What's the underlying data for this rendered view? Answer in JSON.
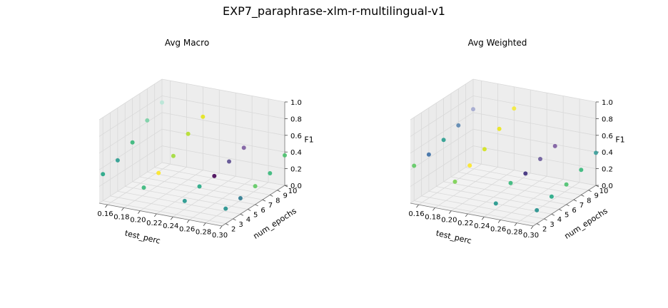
{
  "suptitle": "EXP7_paraphrase-xlm-r-multilingual-v1",
  "colors": {
    "pane": "#f2f2f2",
    "grid": "#d9d9d9",
    "edge": "#777777"
  },
  "chart_data": [
    {
      "type": "scatter",
      "projection": "3d",
      "title": "Avg Macro",
      "xlabel": "test_perc",
      "ylabel": "num_epochs",
      "zlabel": "F1",
      "xlim": [
        0.15,
        0.3
      ],
      "ylim": [
        1.5,
        10
      ],
      "zlim": [
        0,
        1
      ],
      "xticks": [
        "0.16",
        "0.18",
        "0.20",
        "0.22",
        "0.24",
        "0.26",
        "0.28",
        "0.30"
      ],
      "yticks": [
        "2",
        "3",
        "4",
        "5",
        "6",
        "7",
        "8",
        "9",
        "10"
      ],
      "zticks": [
        "0.0",
        "0.2",
        "0.4",
        "0.6",
        "0.8",
        "1.0"
      ],
      "grid": true,
      "points": [
        {
          "x": 0.15,
          "y": 2,
          "z": 0.32,
          "color": "#21a685"
        },
        {
          "x": 0.15,
          "y": 4,
          "z": 0.37,
          "color": "#2a9d8f"
        },
        {
          "x": 0.15,
          "y": 6,
          "z": 0.47,
          "color": "#35b779"
        },
        {
          "x": 0.15,
          "y": 8,
          "z": 0.62,
          "color": "#7ad0a5"
        },
        {
          "x": 0.15,
          "y": 10,
          "z": 0.72,
          "color": "#b8e6d6"
        },
        {
          "x": 0.2,
          "y": 2,
          "z": 0.25,
          "color": "#35b779"
        },
        {
          "x": 0.2,
          "y": 4,
          "z": 0.31,
          "color": "#fde725"
        },
        {
          "x": 0.2,
          "y": 6,
          "z": 0.4,
          "color": "#a0da39"
        },
        {
          "x": 0.2,
          "y": 8,
          "z": 0.55,
          "color": "#b5de2b"
        },
        {
          "x": 0.2,
          "y": 10,
          "z": 0.64,
          "color": "#e4e418"
        },
        {
          "x": 0.25,
          "y": 2,
          "z": 0.18,
          "color": "#1f968b"
        },
        {
          "x": 0.25,
          "y": 4,
          "z": 0.24,
          "color": "#22a884"
        },
        {
          "x": 0.25,
          "y": 6,
          "z": 0.25,
          "color": "#440154"
        },
        {
          "x": 0.25,
          "y": 8,
          "z": 0.31,
          "color": "#5b4c8f"
        },
        {
          "x": 0.25,
          "y": 10,
          "z": 0.36,
          "color": "#7b5a9e"
        },
        {
          "x": 0.3,
          "y": 2,
          "z": 0.18,
          "color": "#21908c"
        },
        {
          "x": 0.3,
          "y": 4,
          "z": 0.19,
          "color": "#2a788e"
        },
        {
          "x": 0.3,
          "y": 6,
          "z": 0.22,
          "color": "#5ec962"
        },
        {
          "x": 0.3,
          "y": 8,
          "z": 0.26,
          "color": "#35b779"
        },
        {
          "x": 0.3,
          "y": 10,
          "z": 0.36,
          "color": "#4ac16d"
        }
      ]
    },
    {
      "type": "scatter",
      "projection": "3d",
      "title": "Avg Weighted",
      "xlabel": "test_perc",
      "ylabel": "num_epochs",
      "zlabel": "F1",
      "xlim": [
        0.15,
        0.3
      ],
      "ylim": [
        1.5,
        10
      ],
      "zlim": [
        0,
        1
      ],
      "xticks": [
        "0.16",
        "0.18",
        "0.20",
        "0.22",
        "0.24",
        "0.26",
        "0.28",
        "0.30"
      ],
      "yticks": [
        "2",
        "3",
        "4",
        "5",
        "6",
        "7",
        "8",
        "9",
        "10"
      ],
      "zticks": [
        "0.0",
        "0.2",
        "0.4",
        "0.6",
        "0.8",
        "1.0"
      ],
      "grid": true,
      "points": [
        {
          "x": 0.15,
          "y": 2,
          "z": 0.42,
          "color": "#5ec962"
        },
        {
          "x": 0.15,
          "y": 4,
          "z": 0.44,
          "color": "#3b6ea5"
        },
        {
          "x": 0.15,
          "y": 6,
          "z": 0.5,
          "color": "#2a9d8f"
        },
        {
          "x": 0.15,
          "y": 8,
          "z": 0.56,
          "color": "#5b86b0"
        },
        {
          "x": 0.15,
          "y": 10,
          "z": 0.64,
          "color": "#a3a8cf"
        },
        {
          "x": 0.2,
          "y": 2,
          "z": 0.32,
          "color": "#7ad151"
        },
        {
          "x": 0.2,
          "y": 4,
          "z": 0.4,
          "color": "#fde725"
        },
        {
          "x": 0.2,
          "y": 6,
          "z": 0.48,
          "color": "#d2e21b"
        },
        {
          "x": 0.2,
          "y": 8,
          "z": 0.61,
          "color": "#eae51a"
        },
        {
          "x": 0.2,
          "y": 10,
          "z": 0.74,
          "color": "#f3ea3a"
        },
        {
          "x": 0.25,
          "y": 2,
          "z": 0.15,
          "color": "#1f968b"
        },
        {
          "x": 0.25,
          "y": 4,
          "z": 0.28,
          "color": "#35b779"
        },
        {
          "x": 0.25,
          "y": 6,
          "z": 0.28,
          "color": "#3b2a7a"
        },
        {
          "x": 0.25,
          "y": 8,
          "z": 0.34,
          "color": "#6a5a9a"
        },
        {
          "x": 0.25,
          "y": 10,
          "z": 0.38,
          "color": "#7b5a9e"
        },
        {
          "x": 0.3,
          "y": 2,
          "z": 0.16,
          "color": "#21908c"
        },
        {
          "x": 0.3,
          "y": 4,
          "z": 0.21,
          "color": "#22a884"
        },
        {
          "x": 0.3,
          "y": 6,
          "z": 0.24,
          "color": "#4ac16d"
        },
        {
          "x": 0.3,
          "y": 8,
          "z": 0.3,
          "color": "#35b779"
        },
        {
          "x": 0.3,
          "y": 10,
          "z": 0.39,
          "color": "#3a9e9a"
        }
      ]
    }
  ]
}
